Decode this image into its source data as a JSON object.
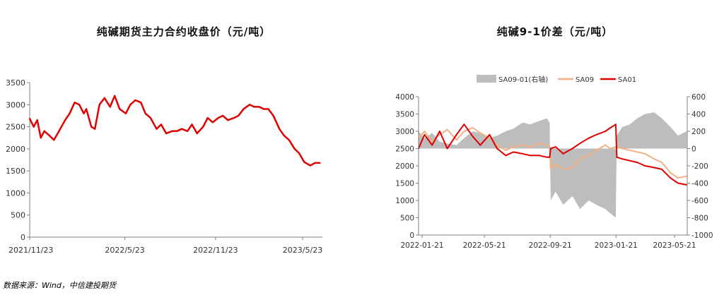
{
  "source": "数据来源：Wind，中信建投期货",
  "chart_data": [
    {
      "type": "line",
      "title": "纯碱期货主力合约收盘价（元/吨）",
      "x_ticks": [
        "2021/11/23",
        "2022/5/23",
        "2022/11/23",
        "2023/5/23"
      ],
      "ylim": [
        0,
        3500
      ],
      "y_ticks": [
        0,
        500,
        1000,
        1500,
        2000,
        2500,
        3000,
        3500
      ],
      "grid": false,
      "series": [
        {
          "color": "#e00000",
          "x": [
            "2021-11-23",
            "2021-12-01",
            "2021-12-08",
            "2021-12-15",
            "2021-12-22",
            "2022-01-01",
            "2022-01-10",
            "2022-01-20",
            "2022-02-01",
            "2022-02-10",
            "2022-02-20",
            "2022-03-01",
            "2022-03-10",
            "2022-03-15",
            "2022-03-25",
            "2022-04-01",
            "2022-04-10",
            "2022-04-20",
            "2022-05-01",
            "2022-05-10",
            "2022-05-20",
            "2022-06-01",
            "2022-06-10",
            "2022-06-20",
            "2022-07-01",
            "2022-07-10",
            "2022-07-20",
            "2022-08-01",
            "2022-08-10",
            "2022-08-20",
            "2022-09-01",
            "2022-09-10",
            "2022-09-20",
            "2022-10-01",
            "2022-10-10",
            "2022-10-20",
            "2022-11-01",
            "2022-11-10",
            "2022-11-20",
            "2022-12-01",
            "2022-12-10",
            "2022-12-20",
            "2023-01-01",
            "2023-01-10",
            "2023-01-20",
            "2023-02-01",
            "2023-02-10",
            "2023-02-20",
            "2023-03-01",
            "2023-03-10",
            "2023-03-20",
            "2023-04-01",
            "2023-04-10",
            "2023-04-20",
            "2023-05-01",
            "2023-05-10",
            "2023-05-20",
            "2023-06-01",
            "2023-06-10",
            "2023-06-20"
          ],
          "values": [
            2680,
            2500,
            2650,
            2250,
            2400,
            2300,
            2200,
            2400,
            2650,
            2800,
            3050,
            3000,
            2800,
            2900,
            2500,
            2450,
            3000,
            3150,
            2950,
            3200,
            2900,
            2800,
            3000,
            3100,
            3050,
            2800,
            2700,
            2450,
            2550,
            2350,
            2400,
            2400,
            2450,
            2400,
            2550,
            2350,
            2500,
            2700,
            2600,
            2700,
            2750,
            2650,
            2700,
            2750,
            2900,
            3000,
            2950,
            2950,
            2900,
            2900,
            2750,
            2450,
            2300,
            2200,
            2000,
            1900,
            1700,
            1620,
            1680,
            1680
          ]
        }
      ]
    },
    {
      "type": "line",
      "title": "纯碱9-1价差（元/吨）",
      "x_ticks": [
        "2022-01-21",
        "2022-05-21",
        "2022-09-21",
        "2023-01-21",
        "2023-05-21"
      ],
      "ylim": [
        0,
        4000
      ],
      "y_ticks": [
        0,
        500,
        1000,
        1500,
        2000,
        2500,
        3000,
        3500,
        4000
      ],
      "y2lim": [
        -1000,
        600
      ],
      "y2_ticks": [
        -1000,
        -800,
        -600,
        -400,
        -200,
        0,
        200,
        400,
        600
      ],
      "legend_position": "top",
      "grid": false,
      "series": [
        {
          "name": "SA09-01(右轴)",
          "type": "area",
          "axis": "right",
          "color": "#bdbdbd",
          "x": [
            "2022-01-21",
            "2022-02-01",
            "2022-02-15",
            "2022-03-01",
            "2022-03-15",
            "2022-04-01",
            "2022-04-15",
            "2022-05-01",
            "2022-05-15",
            "2022-06-01",
            "2022-06-15",
            "2022-07-01",
            "2022-07-15",
            "2022-08-01",
            "2022-08-15",
            "2022-09-01",
            "2022-09-15",
            "2022-09-20",
            "2022-09-22",
            "2022-10-01",
            "2022-10-15",
            "2022-11-01",
            "2022-11-15",
            "2022-12-01",
            "2022-12-15",
            "2023-01-01",
            "2023-01-10",
            "2023-01-20",
            "2023-01-22",
            "2023-02-01",
            "2023-02-15",
            "2023-03-01",
            "2023-03-15",
            "2023-04-01",
            "2023-04-15",
            "2023-05-01",
            "2023-05-15",
            "2023-05-31"
          ],
          "values": [
            200,
            120,
            180,
            80,
            60,
            40,
            120,
            200,
            180,
            120,
            150,
            200,
            230,
            300,
            280,
            320,
            350,
            300,
            -600,
            -500,
            -650,
            -550,
            -700,
            -600,
            -650,
            -700,
            -750,
            -800,
            150,
            250,
            280,
            350,
            400,
            420,
            350,
            250,
            150,
            200
          ]
        },
        {
          "name": "SA09",
          "axis": "left",
          "color": "#f4b183",
          "x": [
            "2022-01-21",
            "2022-02-01",
            "2022-02-15",
            "2022-03-01",
            "2022-03-15",
            "2022-04-01",
            "2022-04-15",
            "2022-05-01",
            "2022-05-15",
            "2022-06-01",
            "2022-06-15",
            "2022-07-01",
            "2022-07-15",
            "2022-08-01",
            "2022-08-15",
            "2022-09-01",
            "2022-09-15",
            "2022-09-20",
            "2022-09-22",
            "2022-10-01",
            "2022-10-15",
            "2022-11-01",
            "2022-11-15",
            "2022-12-01",
            "2022-12-15",
            "2023-01-01",
            "2023-01-10",
            "2023-01-20",
            "2023-01-22",
            "2023-02-01",
            "2023-02-15",
            "2023-03-01",
            "2023-03-15",
            "2023-04-01",
            "2023-04-15",
            "2023-05-01",
            "2023-05-15",
            "2023-05-31"
          ],
          "values": [
            2800,
            3000,
            2700,
            2900,
            3050,
            2750,
            3000,
            3100,
            2950,
            2800,
            2600,
            2450,
            2550,
            2600,
            2550,
            2650,
            2600,
            2550,
            1900,
            2050,
            1900,
            1950,
            2200,
            2300,
            2450,
            2600,
            2500,
            2550,
            2550,
            2500,
            2450,
            2400,
            2350,
            2200,
            2100,
            1800,
            1650,
            1700
          ]
        },
        {
          "name": "SA01",
          "axis": "left",
          "color": "#e00000",
          "x": [
            "2022-01-21",
            "2022-02-01",
            "2022-02-15",
            "2022-03-01",
            "2022-03-15",
            "2022-04-01",
            "2022-04-15",
            "2022-05-01",
            "2022-05-15",
            "2022-06-01",
            "2022-06-15",
            "2022-07-01",
            "2022-07-15",
            "2022-08-01",
            "2022-08-15",
            "2022-09-01",
            "2022-09-15",
            "2022-09-20",
            "2022-09-22",
            "2022-10-01",
            "2022-10-15",
            "2022-11-01",
            "2022-11-15",
            "2022-12-01",
            "2022-12-15",
            "2023-01-01",
            "2023-01-10",
            "2023-01-20",
            "2023-01-22",
            "2023-02-01",
            "2023-02-15",
            "2023-03-01",
            "2023-03-15",
            "2023-04-01",
            "2023-04-15",
            "2023-05-01",
            "2023-05-15",
            "2023-05-31"
          ],
          "values": [
            2500,
            2900,
            2600,
            3000,
            2500,
            2900,
            3200,
            2850,
            2600,
            2900,
            2500,
            2300,
            2400,
            2350,
            2300,
            2300,
            2250,
            2250,
            2500,
            2550,
            2350,
            2500,
            2650,
            2800,
            2900,
            3000,
            3100,
            3200,
            2250,
            2200,
            2150,
            2100,
            2000,
            1950,
            1900,
            1650,
            1500,
            1450
          ]
        }
      ]
    }
  ]
}
